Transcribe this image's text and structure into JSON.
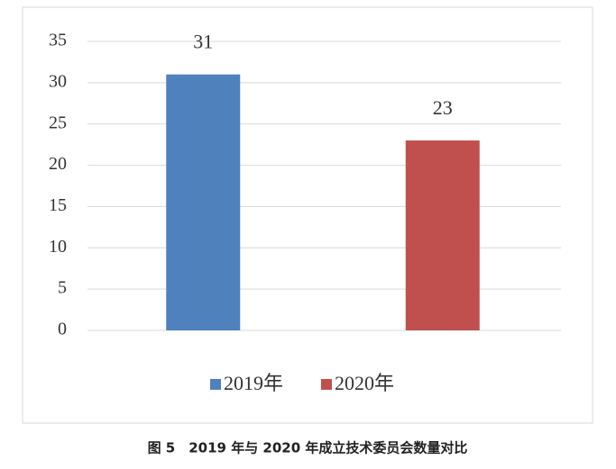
{
  "chart_data": {
    "type": "bar",
    "title": "图 5　2019 年与 2020 年成立技术委员会数量对比",
    "categories": [
      "2019年",
      "2020年"
    ],
    "values": [
      31,
      23
    ],
    "colors": [
      "#4f81bd",
      "#c0504d"
    ],
    "ylim": [
      0,
      35
    ],
    "yticks": [
      0,
      5,
      10,
      15,
      20,
      25,
      30,
      35
    ],
    "grid": true,
    "legend": "bottom"
  }
}
